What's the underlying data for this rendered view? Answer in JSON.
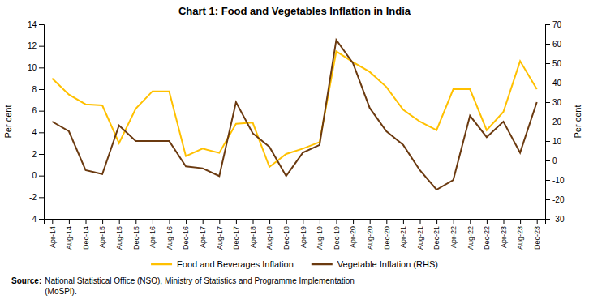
{
  "chart_data": {
    "type": "line",
    "title": "Chart 1: Food and Vegetables Inflation in India",
    "y_label": "Per cent",
    "y2_label": "Per cent",
    "categories": [
      "Apr-14",
      "Aug-14",
      "Dec-14",
      "Apr-15",
      "Aug-15",
      "Dec-15",
      "Apr-16",
      "Aug-16",
      "Dec-16",
      "Apr-17",
      "Aug-17",
      "Dec-17",
      "Apr-18",
      "Aug-18",
      "Dec-18",
      "Apr-19",
      "Aug-19",
      "Dec-19",
      "Apr-20",
      "Aug-20",
      "Dec-20",
      "Apr-21",
      "Aug-21",
      "Dec-21",
      "Apr-22",
      "Aug-22",
      "Dec-22",
      "Apr-23",
      "Aug-23",
      "Dec-23"
    ],
    "series": [
      {
        "name": "Food and Beverages Inflation",
        "color": "#FFC000",
        "axis": "y",
        "values": [
          9.0,
          7.5,
          6.6,
          6.5,
          3.0,
          6.2,
          7.8,
          7.8,
          1.8,
          2.5,
          2.1,
          4.8,
          4.9,
          0.8,
          2.0,
          2.5,
          3.1,
          11.5,
          10.5,
          9.6,
          8.2,
          6.1,
          5.0,
          4.2,
          8.0,
          8.0,
          4.2,
          5.9,
          10.6,
          8.0
        ]
      },
      {
        "name": "Vegetable Inflation (RHS)",
        "color": "#6B3A10",
        "axis": "y2",
        "values": [
          20,
          15,
          -5,
          -7,
          18,
          10,
          10,
          10,
          -3,
          -4,
          -8,
          30,
          14,
          7,
          -8,
          4,
          8,
          62,
          50,
          27,
          15,
          8,
          -5,
          -15,
          -10,
          23,
          12,
          20,
          4,
          30
        ]
      }
    ],
    "ylim": [
      -4,
      14
    ],
    "yticks": [
      -4,
      -2,
      0,
      2,
      4,
      6,
      8,
      10,
      12,
      14
    ],
    "y2lim": [
      -30,
      70
    ],
    "y2ticks": [
      -30,
      -20,
      -10,
      0,
      10,
      20,
      30,
      40,
      50,
      60,
      70
    ],
    "grid": false,
    "legend": "bottom",
    "source_label": "Source:",
    "source_lines": [
      "National Statistical Office (NSO), Ministry of Statistics and Programme Implementation",
      "(MoSPI)."
    ]
  }
}
